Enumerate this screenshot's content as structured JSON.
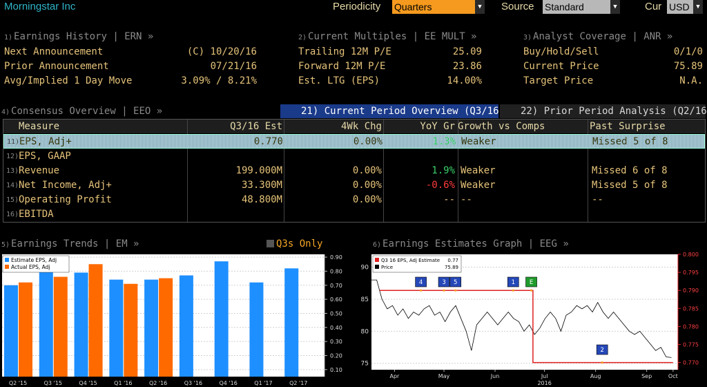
{
  "header": {
    "title": "Morningstar Inc",
    "periodicity_label": "Periodicity",
    "periodicity_value": "Quarters",
    "source_label": "Source",
    "source_value": "Standard",
    "cur_label": "Cur",
    "cur_value": "USD"
  },
  "sections": {
    "earnings_history": {
      "num": "1)",
      "title": "Earnings History | ERN »"
    },
    "current_multiples": {
      "num": "2)",
      "title": "Current Multiples | EE MULT »"
    },
    "analyst_coverage": {
      "num": "3)",
      "title": "Analyst Coverage | ANR »"
    }
  },
  "earnings_history": [
    {
      "label": "Next Announcement",
      "value": "(C)  10/20/16"
    },
    {
      "label": "Prior Announcement",
      "value": "07/21/16"
    },
    {
      "label": "Avg/Implied 1 Day Move",
      "value": "3.09% / 8.21%"
    }
  ],
  "current_multiples": [
    {
      "label": "Trailing 12M P/E",
      "value": "25.09"
    },
    {
      "label": "Forward 12M P/E",
      "value": "23.86"
    },
    {
      "label": "Est. LTG (EPS)",
      "value": "14.00%"
    }
  ],
  "analyst_coverage": [
    {
      "label": "Buy/Hold/Sell",
      "value": "0/1/0"
    },
    {
      "label": "Current Price",
      "value": "75.89"
    },
    {
      "label": "Target Price",
      "value": "N.A."
    }
  ],
  "consensus": {
    "num": "4)",
    "title": "Consensus Overview | EEO »",
    "tab_active": "21) Current Period Overview (Q3/16)",
    "tab_inactive": "22) Prior Period Analysis (Q2/16)",
    "headers": [
      "Measure",
      "Q3/16 Est",
      "4Wk Chg",
      "YoY Gr",
      "Growth vs Comps",
      "Past Surprise"
    ],
    "rows": [
      {
        "num": "11)",
        "measure": "EPS, Adj+",
        "est": "0.770",
        "chg": "0.00%",
        "yoy": "1.3%",
        "comps": "Weaker",
        "surprise": "Missed 5 of 8"
      },
      {
        "num": "12)",
        "measure": "EPS, GAAP",
        "est": "",
        "chg": "",
        "yoy": "",
        "comps": "",
        "surprise": ""
      },
      {
        "num": "13)",
        "measure": "Revenue",
        "est": "199.000M",
        "chg": "0.00%",
        "yoy": "1.9%",
        "comps": "Weaker",
        "surprise": "Missed 6 of 8"
      },
      {
        "num": "14)",
        "measure": "Net Income, Adj+",
        "est": "33.300M",
        "chg": "0.00%",
        "yoy": "-0.6%",
        "comps": "Weaker",
        "surprise": "Missed 5 of 8"
      },
      {
        "num": "15)",
        "measure": "Operating Profit",
        "est": "48.800M",
        "chg": "0.00%",
        "yoy": "--",
        "comps": "--",
        "surprise": "--"
      },
      {
        "num": "16)",
        "measure": "EBITDA",
        "est": "",
        "chg": "",
        "yoy": "",
        "comps": "",
        "surprise": ""
      }
    ]
  },
  "trends": {
    "num": "5)",
    "title": "Earnings Trends | EM »",
    "toggle": "Q3s Only"
  },
  "estimates_graph": {
    "num": "6)",
    "title": "Earnings Estimates Graph | EEG »"
  },
  "colors": {
    "blue": "#1e8fff",
    "orange": "#ff6a00",
    "amber": "#e6c37a",
    "red": "#e02020",
    "bg": "#000000"
  },
  "chart_data": [
    {
      "type": "bar",
      "categories": [
        "Q2 '15",
        "Q3 '15",
        "Q4 '15",
        "Q1 '16",
        "Q2 '16",
        "Q3 '16",
        "Q4 '16",
        "Q1 '17",
        "Q2 '17"
      ],
      "series": [
        {
          "name": "Estimate EPS, Adj",
          "color": "#1e8fff",
          "values": [
            0.7,
            0.8,
            0.79,
            0.74,
            0.74,
            0.77,
            0.87,
            0.72,
            0.82
          ]
        },
        {
          "name": "Actual EPS, Adj",
          "color": "#ff6a00",
          "values": [
            0.72,
            0.76,
            0.85,
            0.71,
            0.75,
            null,
            null,
            null,
            null
          ]
        }
      ],
      "yticks": [
        "0.10",
        "0.20",
        "0.30",
        "0.40",
        "0.50",
        "0.60",
        "0.70",
        "0.80",
        "0.90"
      ],
      "ylim": [
        0.05,
        0.92
      ],
      "legend": "top-left"
    },
    {
      "type": "line",
      "x_labels": [
        "Apr",
        "May",
        "Jun",
        "Jul",
        "Aug",
        "Sep",
        "Oct"
      ],
      "year_label": "2016",
      "left_axis": {
        "ticks": [
          "75",
          "80",
          "85",
          "90"
        ],
        "range": [
          74,
          92
        ]
      },
      "right_axis": {
        "ticks": [
          "0.770",
          "0.775",
          "0.780",
          "0.785",
          "0.790",
          "0.795",
          "0.800"
        ],
        "range": [
          0.768,
          0.8
        ]
      },
      "legend": [
        {
          "label": "Q3 16 EPS, Adj Estimate",
          "value": "0.77",
          "color": "#e02020"
        },
        {
          "label": "Price",
          "value": "75.89",
          "color": "#000000"
        }
      ],
      "estimate_series": [
        [
          "2016-04-06",
          0.79
        ],
        [
          "2016-07-08",
          0.79
        ],
        [
          "2016-07-08",
          0.77
        ],
        [
          "2016-10-01",
          0.77
        ]
      ],
      "price_series": [
        88,
        88,
        85,
        83.5,
        84,
        82.5,
        83.5,
        82,
        83,
        82.5,
        83.5,
        84,
        82.5,
        83,
        81.5,
        83,
        84,
        82,
        80,
        77,
        81,
        82,
        83,
        82,
        81,
        82,
        83,
        82,
        81.5,
        80,
        81,
        79.5,
        80.5,
        82,
        83,
        82,
        80,
        82.5,
        83,
        84,
        83.5,
        84,
        83,
        84.5,
        83,
        82,
        83,
        82,
        81,
        80,
        79.5,
        80,
        79,
        78,
        77,
        77.5,
        76,
        75.9
      ],
      "event_markers": [
        {
          "label": "4",
          "x": "2016-05-01"
        },
        {
          "label": "3",
          "x": "2016-05-15"
        },
        {
          "label": "5",
          "x": "2016-05-22"
        },
        {
          "label": "1",
          "x": "2016-06-26"
        },
        {
          "label": "E",
          "x": "2016-07-07",
          "color": "green"
        },
        {
          "label": "2",
          "x": "2016-08-19"
        }
      ]
    }
  ]
}
